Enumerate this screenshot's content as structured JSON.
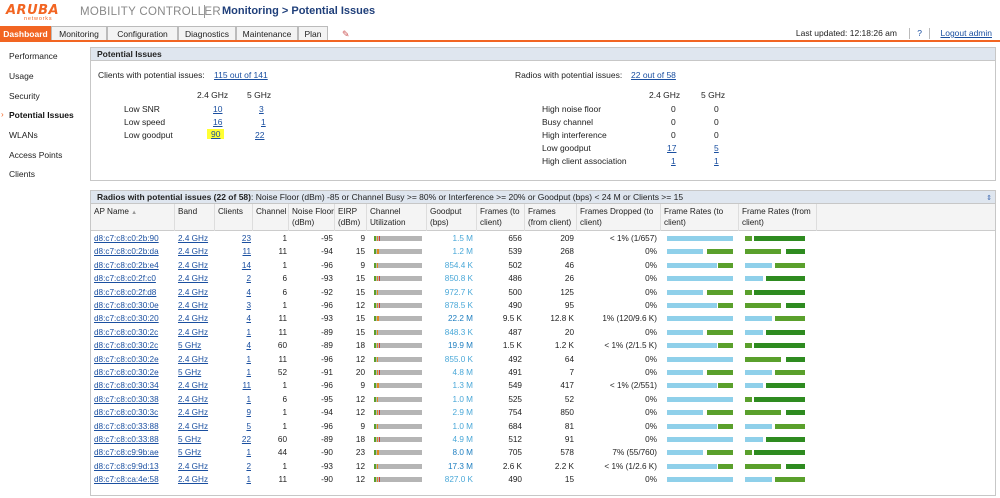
{
  "header": {
    "logo_text": "ARUBA",
    "logo_sub": "networks",
    "product": "MOBILITY CONTROLLER",
    "breadcrumb": "Monitoring > Potential Issues",
    "last_updated": "Last updated:  12:18:26 am",
    "help": "?",
    "logout": "Logout admin"
  },
  "tabs": [
    "Dashboard",
    "Monitoring",
    "Configuration",
    "Diagnostics",
    "Maintenance",
    "Plan"
  ],
  "active_tab": "Dashboard",
  "sidebar": {
    "items": [
      "Performance",
      "Usage",
      "Security",
      "Potential Issues",
      "WLANs",
      "Access Points",
      "Clients"
    ],
    "active": "Potential Issues"
  },
  "potential_issues": {
    "title": "Potential Issues",
    "clients_label": "Clients with potential issues:",
    "clients_value": "115 out of 141",
    "radios_label": "Radios with potential issues:",
    "radios_value": "22 out of 58",
    "band_headers": [
      "2.4 GHz",
      "5 GHz"
    ],
    "clients_rows": [
      {
        "label": "Low SNR",
        "g24": "10",
        "g5": "3"
      },
      {
        "label": "Low speed",
        "g24": "16",
        "g5": "1"
      },
      {
        "label": "Low goodput",
        "g24": "90",
        "g5": "22"
      }
    ],
    "radios_rows": [
      {
        "label": "High noise floor",
        "g24": "0",
        "g5": "0",
        "link": false
      },
      {
        "label": "Busy channel",
        "g24": "0",
        "g5": "0",
        "link": false
      },
      {
        "label": "High interference",
        "g24": "0",
        "g5": "0",
        "link": false
      },
      {
        "label": "Low goodput",
        "g24": "17",
        "g5": "5",
        "link": true
      },
      {
        "label": "High client association",
        "g24": "1",
        "g5": "1",
        "link": true
      }
    ]
  },
  "radios_table": {
    "title": "Radios with potential issues (22 of 58)",
    "criteria": ": Noise Floor (dBm) -85 or Channel Busy >= 80% or Interference >= 20% or Goodput (bps) < 24 M or Clients >= 15",
    "columns": [
      "AP Name",
      "Band",
      "Clients",
      "Channel",
      "Noise Floor (dBm)",
      "EIRP (dBm)",
      "Channel Utilization",
      "Goodput (bps)",
      "Frames (to client)",
      "Frames (from client)",
      "Frames Dropped (to client)",
      "Frame Rates (to client)",
      "Frame Rates (from client)"
    ],
    "sort_indicator": "▲",
    "rows": [
      {
        "ap": "d8:c7:c8:c0:2b:90",
        "band": "2.4 GHz",
        "clients": "23",
        "channel": "1",
        "noise": "-95",
        "eirp": "9",
        "goodput": "1.5 M",
        "ftc": "656",
        "ffc": "209",
        "dropped": "< 1% (1/657)"
      },
      {
        "ap": "d8:c7:c8:c0:2b:da",
        "band": "2.4 GHz",
        "clients": "11",
        "channel": "11",
        "noise": "-94",
        "eirp": "15",
        "goodput": "1.2 M",
        "ftc": "539",
        "ffc": "268",
        "dropped": "0%"
      },
      {
        "ap": "d8:c7:c8:c0:2b:e4",
        "band": "2.4 GHz",
        "clients": "14",
        "channel": "1",
        "noise": "-96",
        "eirp": "9",
        "goodput": "854.4 K",
        "ftc": "502",
        "ffc": "46",
        "dropped": "0%"
      },
      {
        "ap": "d8:c7:c8:c0:2f:c0",
        "band": "2.4 GHz",
        "clients": "2",
        "channel": "6",
        "noise": "-93",
        "eirp": "15",
        "goodput": "850.8 K",
        "ftc": "486",
        "ffc": "26",
        "dropped": "0%"
      },
      {
        "ap": "d8:c7:c8:c0:2f:d8",
        "band": "2.4 GHz",
        "clients": "4",
        "channel": "6",
        "noise": "-92",
        "eirp": "15",
        "goodput": "972.7 K",
        "ftc": "500",
        "ffc": "125",
        "dropped": "0%"
      },
      {
        "ap": "d8:c7:c8:c0:30:0e",
        "band": "2.4 GHz",
        "clients": "3",
        "channel": "1",
        "noise": "-96",
        "eirp": "12",
        "goodput": "878.5 K",
        "ftc": "490",
        "ffc": "95",
        "dropped": "0%"
      },
      {
        "ap": "d8:c7:c8:c0:30:20",
        "band": "2.4 GHz",
        "clients": "4",
        "channel": "11",
        "noise": "-93",
        "eirp": "15",
        "goodput": "22.2 M",
        "ftc": "9.5 K",
        "ffc": "12.8 K",
        "dropped": "1% (120/9.6 K)"
      },
      {
        "ap": "d8:c7:c8:c0:30:2c",
        "band": "2.4 GHz",
        "clients": "1",
        "channel": "11",
        "noise": "-89",
        "eirp": "15",
        "goodput": "848.3 K",
        "ftc": "487",
        "ffc": "20",
        "dropped": "0%"
      },
      {
        "ap": "d8:c7:c8:c0:30:2c",
        "band": "5 GHz",
        "clients": "4",
        "channel": "60",
        "noise": "-89",
        "eirp": "18",
        "goodput": "19.9 M",
        "ftc": "1.5 K",
        "ffc": "1.2 K",
        "dropped": "< 1% (2/1.5 K)"
      },
      {
        "ap": "d8:c7:c8:c0:30:2e",
        "band": "2.4 GHz",
        "clients": "1",
        "channel": "11",
        "noise": "-96",
        "eirp": "12",
        "goodput": "855.0 K",
        "ftc": "492",
        "ffc": "64",
        "dropped": "0%"
      },
      {
        "ap": "d8:c7:c8:c0:30:2e",
        "band": "5 GHz",
        "clients": "1",
        "channel": "52",
        "noise": "-91",
        "eirp": "20",
        "goodput": "4.8 M",
        "ftc": "491",
        "ffc": "7",
        "dropped": "0%"
      },
      {
        "ap": "d8:c7:c8:c0:30:34",
        "band": "2.4 GHz",
        "clients": "11",
        "channel": "1",
        "noise": "-96",
        "eirp": "9",
        "goodput": "1.3 M",
        "ftc": "549",
        "ffc": "417",
        "dropped": "< 1% (2/551)"
      },
      {
        "ap": "d8:c7:c8:c0:30:38",
        "band": "2.4 GHz",
        "clients": "1",
        "channel": "6",
        "noise": "-95",
        "eirp": "12",
        "goodput": "1.0 M",
        "ftc": "525",
        "ffc": "52",
        "dropped": "0%"
      },
      {
        "ap": "d8:c7:c8:c0:30:3c",
        "band": "2.4 GHz",
        "clients": "9",
        "channel": "1",
        "noise": "-94",
        "eirp": "12",
        "goodput": "2.9 M",
        "ftc": "754",
        "ffc": "850",
        "dropped": "0%"
      },
      {
        "ap": "d8:c7:c8:c0:33:88",
        "band": "2.4 GHz",
        "clients": "5",
        "channel": "1",
        "noise": "-96",
        "eirp": "9",
        "goodput": "1.0 M",
        "ftc": "684",
        "ffc": "81",
        "dropped": "0%"
      },
      {
        "ap": "d8:c7:c8:c0:33:88",
        "band": "5 GHz",
        "clients": "22",
        "channel": "60",
        "noise": "-89",
        "eirp": "18",
        "goodput": "4.9 M",
        "ftc": "512",
        "ffc": "91",
        "dropped": "0%"
      },
      {
        "ap": "d8:c7:c8:c9:9b:ae",
        "band": "5 GHz",
        "clients": "1",
        "channel": "44",
        "noise": "-90",
        "eirp": "23",
        "goodput": "8.0 M",
        "ftc": "705",
        "ffc": "578",
        "dropped": "7% (55/760)"
      },
      {
        "ap": "d8:c7:c8:c9:9d:13",
        "band": "2.4 GHz",
        "clients": "2",
        "channel": "1",
        "noise": "-93",
        "eirp": "12",
        "goodput": "17.3 M",
        "ftc": "2.6 K",
        "ffc": "2.2 K",
        "dropped": "< 1% (1/2.6 K)"
      },
      {
        "ap": "d8:c7:c8:ca:4e:58",
        "band": "2.4 GHz",
        "clients": "1",
        "channel": "11",
        "noise": "-90",
        "eirp": "12",
        "goodput": "827.0 K",
        "ftc": "490",
        "ffc": "15",
        "dropped": "0%"
      }
    ]
  },
  "colors": {
    "accent": "#f26522",
    "link": "#1a4fa0",
    "highlight": "#ffff33",
    "util_bar": "#b5b5b5",
    "util_green": "#5aa02c",
    "util_orange": "#e08a1e",
    "util_red": "#c83c3c",
    "rate_blue": "#8fd0ea",
    "rate_green": "#5fa83a",
    "rate_darkgreen": "#2e8b20"
  },
  "icons": {
    "sort": "sort-ascending-icon",
    "active_nav": "chevron-right-icon",
    "tools": "wrench-icon",
    "collapse": "collapse-arrows-icon"
  }
}
